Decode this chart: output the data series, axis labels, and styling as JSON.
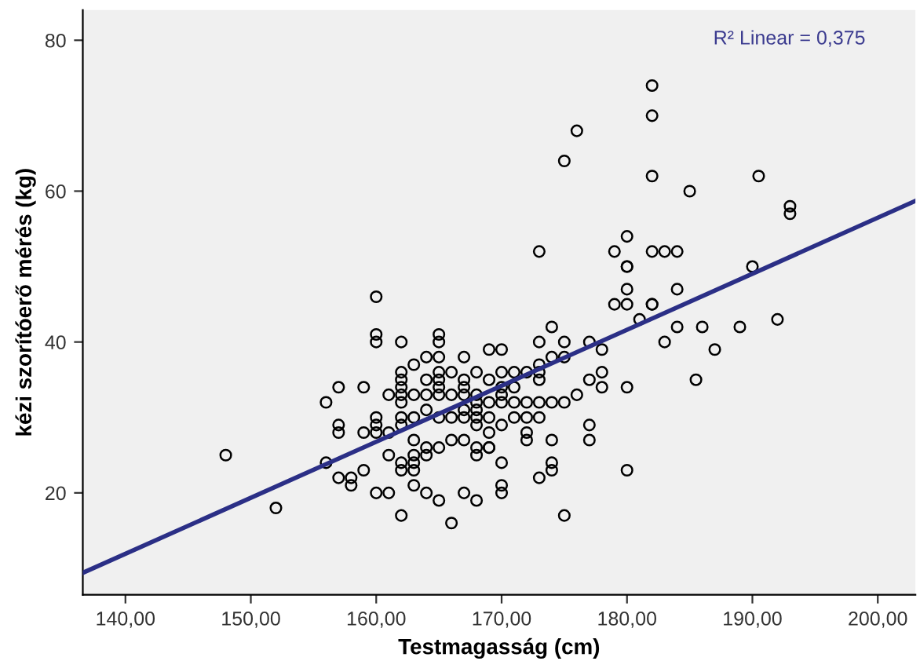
{
  "chart_data": {
    "type": "scatter",
    "xlabel": "Testmagasság (cm)",
    "ylabel": "kézi szorítóerő mérés (kg)",
    "annotations": [
      "R² Linear = 0,375"
    ],
    "xlim": [
      136.6,
      203
    ],
    "ylim": [
      6.5,
      84
    ],
    "xticks": [
      {
        "value": 140,
        "label": "140,00"
      },
      {
        "value": 150,
        "label": "150,00"
      },
      {
        "value": 160,
        "label": "160,00"
      },
      {
        "value": 170,
        "label": "170,00"
      },
      {
        "value": 180,
        "label": "180,00"
      },
      {
        "value": 190,
        "label": "190,00"
      },
      {
        "value": 200,
        "label": "200,00"
      }
    ],
    "yticks": [
      20,
      40,
      60,
      80
    ],
    "grid": false,
    "legend": false,
    "series": [
      {
        "marker": "circle",
        "color": "#000000",
        "x": [
          148,
          152,
          160,
          160,
          160,
          162,
          165,
          165,
          163,
          164,
          165,
          167,
          169,
          170,
          162,
          162,
          162,
          162,
          162,
          165,
          166,
          165,
          165,
          165,
          164,
          167,
          167,
          167,
          168,
          169,
          170,
          157,
          159,
          163,
          164,
          161,
          166,
          168,
          168,
          168,
          168,
          168,
          156,
          164,
          167,
          160,
          160,
          160,
          162,
          162,
          163,
          165,
          166,
          167,
          157,
          157,
          159,
          161,
          163,
          164,
          165,
          166,
          167,
          168,
          168,
          169,
          161,
          163,
          164,
          162,
          162,
          163,
          163,
          156,
          159,
          157,
          158,
          158,
          163,
          160,
          161,
          164,
          165,
          167,
          168,
          170,
          170,
          162,
          166,
          173,
          179,
          180,
          180,
          180,
          184,
          179,
          180,
          182,
          181,
          190,
          192,
          174,
          184,
          186,
          189,
          173,
          175,
          177,
          178,
          183,
          187,
          173,
          173,
          174,
          175,
          171,
          172,
          177,
          178,
          178,
          180,
          185.5,
          171,
          170,
          170,
          173,
          169,
          170,
          171,
          172,
          173,
          174,
          175,
          176,
          169,
          171,
          172,
          173,
          170,
          169,
          172,
          172,
          174,
          177,
          177,
          169,
          170,
          174,
          174,
          173,
          180,
          175,
          182,
          182,
          176,
          175,
          182,
          190.5,
          185,
          193,
          193,
          183,
          184,
          182,
          182,
          180
        ],
        "values": [
          25,
          18,
          46,
          41,
          40,
          40,
          41,
          40,
          37,
          38,
          38,
          38,
          39,
          39,
          36,
          35,
          34,
          33,
          32,
          36,
          36,
          35,
          34,
          33,
          35,
          35,
          34,
          33,
          36,
          35,
          36,
          34,
          34,
          33,
          33,
          33,
          33,
          33,
          32,
          31,
          30,
          29,
          32,
          31,
          31,
          30,
          29,
          28,
          30,
          29,
          30,
          30,
          30,
          30,
          29,
          28,
          28,
          28,
          27,
          26,
          26,
          27,
          27,
          26,
          25,
          26,
          25,
          25,
          25,
          24,
          23,
          24,
          23,
          24,
          23,
          22,
          22,
          21,
          21,
          20,
          20,
          20,
          19,
          20,
          19,
          21,
          20,
          17,
          16,
          52,
          52,
          54,
          50,
          47,
          47,
          45,
          45,
          45,
          43,
          50,
          43,
          42,
          42,
          42,
          42,
          40,
          40,
          40,
          39,
          40,
          39,
          37,
          36,
          38,
          38,
          36,
          36,
          35,
          36,
          34,
          34,
          35,
          34,
          34,
          33,
          35,
          32,
          32,
          32,
          32,
          32,
          32,
          32,
          33,
          30,
          30,
          30,
          30,
          29,
          28,
          28,
          27,
          27,
          29,
          27,
          26,
          24,
          24,
          23,
          22,
          23,
          17,
          74,
          70,
          68,
          64,
          62,
          62,
          60,
          58,
          57,
          52,
          52,
          52,
          45,
          50
        ]
      },
      {
        "type": "line",
        "color": "#2b2f86",
        "x": [
          136.6,
          203
        ],
        "values": [
          9.4,
          58.7
        ]
      }
    ]
  }
}
